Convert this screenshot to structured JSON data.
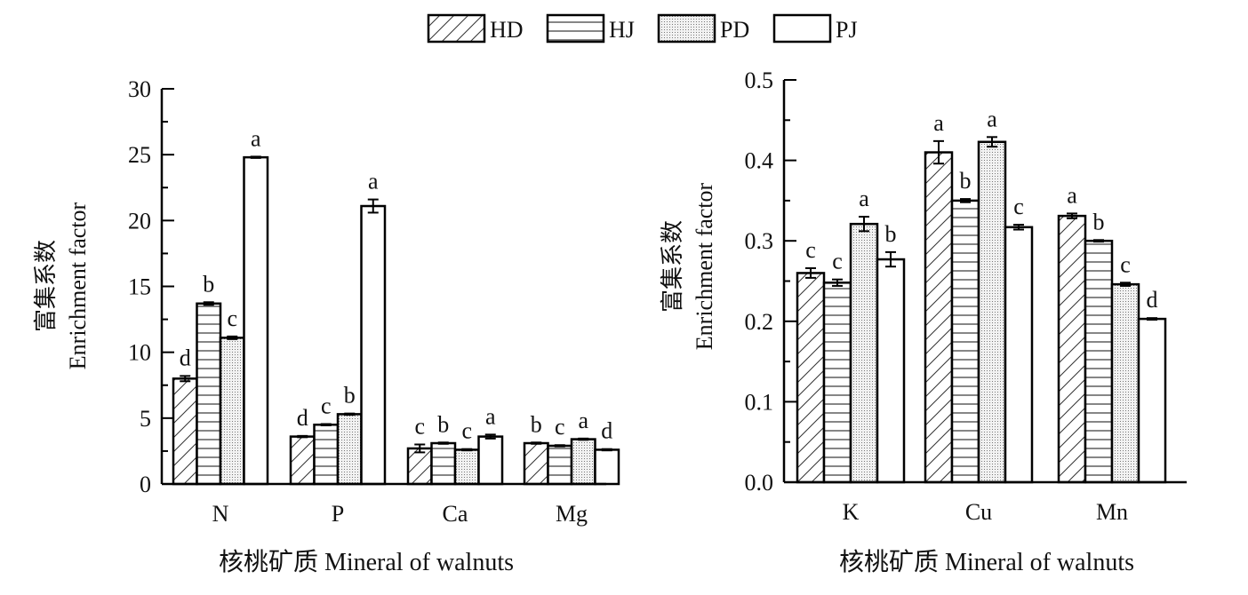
{
  "legend": [
    {
      "name": "HD",
      "pattern": "diagonal"
    },
    {
      "name": "HJ",
      "pattern": "horizontal"
    },
    {
      "name": "PD",
      "pattern": "dots"
    },
    {
      "name": "PJ",
      "pattern": "empty"
    }
  ],
  "chart_data": [
    {
      "type": "bar",
      "title": "",
      "ylabel_cn": "富集系数",
      "ylabel": "Enrichment factor",
      "xlabel": "核桃矿质 Mineral of walnuts",
      "ylim": [
        0,
        30
      ],
      "yticks": [
        0,
        5,
        10,
        15,
        20,
        25,
        30
      ],
      "categories": [
        "N",
        "P",
        "Ca",
        "Mg"
      ],
      "series": [
        {
          "name": "HD",
          "values": [
            8.0,
            3.6,
            2.7,
            3.1
          ],
          "errors": [
            0.2,
            0.05,
            0.3,
            0.05
          ],
          "letters": [
            "d",
            "d",
            "c",
            "b"
          ]
        },
        {
          "name": "HJ",
          "values": [
            13.7,
            4.5,
            3.1,
            2.9
          ],
          "errors": [
            0.1,
            0.05,
            0.05,
            0.05
          ],
          "letters": [
            "b",
            "c",
            "b",
            "c"
          ]
        },
        {
          "name": "PD",
          "values": [
            11.1,
            5.3,
            2.6,
            3.4
          ],
          "errors": [
            0.1,
            0.05,
            0.05,
            0.05
          ],
          "letters": [
            "c",
            "b",
            "c",
            "a"
          ]
        },
        {
          "name": "PJ",
          "values": [
            24.8,
            21.1,
            3.6,
            2.6
          ],
          "errors": [
            0.05,
            0.5,
            0.15,
            0.05
          ],
          "letters": [
            "a",
            "a",
            "a",
            "d"
          ]
        }
      ]
    },
    {
      "type": "bar",
      "title": "",
      "ylabel_cn": "富集系数",
      "ylabel": "Enrichment factor",
      "xlabel": "核桃矿质 Mineral of walnuts",
      "ylim": [
        0,
        0.5
      ],
      "yticks": [
        "0.0",
        "0.1",
        "0.2",
        "0.3",
        "0.4",
        "0.5"
      ],
      "categories": [
        "K",
        "Cu",
        "Mn"
      ],
      "series": [
        {
          "name": "HD",
          "values": [
            0.26,
            0.41,
            0.331
          ],
          "errors": [
            0.006,
            0.014,
            0.003
          ],
          "letters": [
            "c",
            "a",
            "a"
          ]
        },
        {
          "name": "HJ",
          "values": [
            0.248,
            0.35,
            0.3
          ],
          "errors": [
            0.004,
            0.002,
            0.001
          ],
          "letters": [
            "c",
            "b",
            "b"
          ]
        },
        {
          "name": "PD",
          "values": [
            0.321,
            0.423,
            0.246
          ],
          "errors": [
            0.009,
            0.006,
            0.002
          ],
          "letters": [
            "a",
            "a",
            "c"
          ]
        },
        {
          "name": "PJ",
          "values": [
            0.277,
            0.317,
            0.203
          ],
          "errors": [
            0.009,
            0.003,
            0.001
          ],
          "letters": [
            "b",
            "c",
            "d"
          ]
        }
      ]
    }
  ]
}
